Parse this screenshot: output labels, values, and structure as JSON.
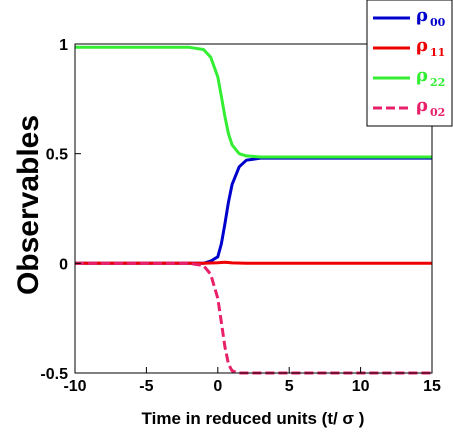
{
  "chart_data": {
    "type": "line",
    "title": "",
    "xlabel": "Time in reduced units (t/ σ )",
    "ylabel": "Observables",
    "xlim": [
      -10,
      15
    ],
    "ylim": [
      -0.5,
      1.0
    ],
    "xticks": [
      "-10",
      "-5",
      "0",
      "5",
      "10",
      "15"
    ],
    "yticks": [
      "1",
      "0.5",
      "0",
      "-0.5"
    ],
    "grid": false,
    "legend_position": "top-right",
    "series": [
      {
        "name": "ρ 00",
        "symbol": "ρ",
        "subscript": "00",
        "color": "#0000cc",
        "style": "solid",
        "x": [
          -10,
          -2,
          -1,
          -0.5,
          0,
          0.25,
          0.5,
          0.75,
          1,
          1.5,
          2,
          3,
          5,
          15
        ],
        "y": [
          0,
          0,
          0,
          0.01,
          0.03,
          0.09,
          0.18,
          0.28,
          0.36,
          0.44,
          0.47,
          0.48,
          0.48,
          0.48
        ]
      },
      {
        "name": "ρ 11",
        "symbol": "ρ",
        "subscript": "11",
        "color": "#ee0000",
        "style": "solid",
        "x": [
          -10,
          -1,
          0,
          0.5,
          1,
          2,
          15
        ],
        "y": [
          0,
          0,
          0.003,
          0.005,
          0.002,
          0,
          0
        ]
      },
      {
        "name": "ρ 22",
        "symbol": "ρ",
        "subscript": "22",
        "color": "#33ee33",
        "style": "solid",
        "x": [
          -10,
          -2,
          -1,
          -0.5,
          0,
          0.25,
          0.5,
          0.75,
          1,
          1.5,
          2,
          3,
          5,
          15
        ],
        "y": [
          0.985,
          0.985,
          0.975,
          0.94,
          0.85,
          0.76,
          0.67,
          0.59,
          0.54,
          0.5,
          0.49,
          0.485,
          0.485,
          0.485
        ]
      },
      {
        "name": "ρ 02",
        "symbol": "ρ",
        "subscript": "02",
        "color": "#e8206a",
        "style": "dashed",
        "x": [
          -10,
          -2,
          -1,
          -0.5,
          0,
          0.25,
          0.5,
          0.75,
          1,
          1.5,
          2,
          3,
          15
        ],
        "y": [
          0,
          0,
          -0.01,
          -0.05,
          -0.16,
          -0.27,
          -0.38,
          -0.46,
          -0.49,
          -0.5,
          -0.5,
          -0.5,
          -0.5
        ]
      }
    ]
  }
}
